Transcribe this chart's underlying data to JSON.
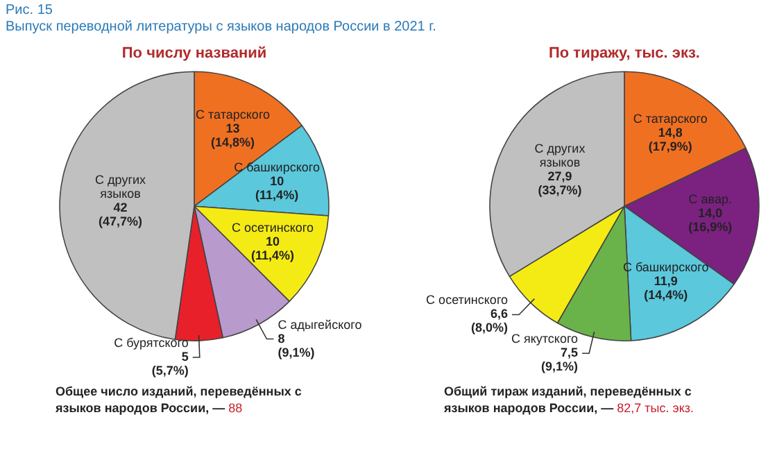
{
  "chart_data": [
    {
      "type": "pie",
      "title": "По числу названий",
      "categories": [
        "С татарского",
        "С башкирского",
        "С осетинского",
        "С адыгейского",
        "С бурятского",
        "С других языков"
      ],
      "values": [
        13,
        10,
        10,
        8,
        5,
        42
      ],
      "value_labels": [
        "13\n(14,8%)",
        "10\n(11,4%)",
        "10\n(11,4%)",
        "8\n(9,1%)",
        "5\n(5,7%)",
        "42\n(47,7%)"
      ],
      "colors": [
        "#f07022",
        "#5bc8dc",
        "#f5eb14",
        "#b89acc",
        "#e8202a",
        "#c0c0c0"
      ],
      "legend": false,
      "annotations": [
        "Рис. 15",
        "Выпуск переводной литературы с языков народов России в 2021 г.",
        "Общее число изданий, переведённых с языков народов России, — 88"
      ]
    },
    {
      "type": "pie",
      "title": "По тиражу, тыс. экз.",
      "categories": [
        "С татарского",
        "С авар.",
        "С башкирского",
        "С якутского",
        "С осетинского",
        "С других языков"
      ],
      "values": [
        14.8,
        14.0,
        11.9,
        7.5,
        6.6,
        27.9
      ],
      "value_labels": [
        "14,8\n(17,9%)",
        "14,0\n(16,9%)",
        "11,9\n(14,4%)",
        "7,5\n(9,1%)",
        "6,6\n(8,0%)",
        "27,9\n(33,7%)"
      ],
      "colors": [
        "#f07022",
        "#7b2180",
        "#5bc8dc",
        "#6ab34a",
        "#f5eb14",
        "#c0c0c0"
      ],
      "legend": false,
      "annotations": [
        "Общий тираж изданий, переведённых с языков народов России, — 82,7 тыс. экз."
      ]
    }
  ]
}
